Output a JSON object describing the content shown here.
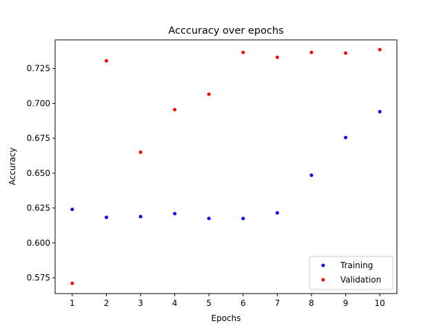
{
  "chart_data": {
    "type": "scatter",
    "title": "Acccuracy over epochs",
    "xlabel": "Epochs",
    "ylabel": "Accuracy",
    "xlim": [
      0.5,
      10.5
    ],
    "ylim": [
      0.5637,
      0.7455
    ],
    "x_ticks": [
      1,
      2,
      3,
      4,
      5,
      6,
      7,
      8,
      9,
      10
    ],
    "y_ticks": [
      0.575,
      0.6,
      0.625,
      0.65,
      0.675,
      0.7,
      0.725
    ],
    "y_tick_labels": [
      "0.575",
      "0.600",
      "0.625",
      "0.650",
      "0.675",
      "0.700",
      "0.725"
    ],
    "grid": false,
    "legend_position": "lower-right",
    "series": [
      {
        "name": "Training",
        "color": "#0000ff",
        "x": [
          1,
          2,
          3,
          4,
          5,
          6,
          7,
          8,
          9,
          10
        ],
        "y": [
          0.624,
          0.6183,
          0.6188,
          0.621,
          0.6175,
          0.6175,
          0.6215,
          0.6485,
          0.6755,
          0.694
        ]
      },
      {
        "name": "Validation",
        "color": "#ff0000",
        "x": [
          1,
          2,
          3,
          4,
          5,
          6,
          7,
          8,
          9,
          10
        ],
        "y": [
          0.571,
          0.7305,
          0.665,
          0.6955,
          0.7065,
          0.7365,
          0.733,
          0.7365,
          0.736,
          0.7385
        ]
      }
    ]
  }
}
